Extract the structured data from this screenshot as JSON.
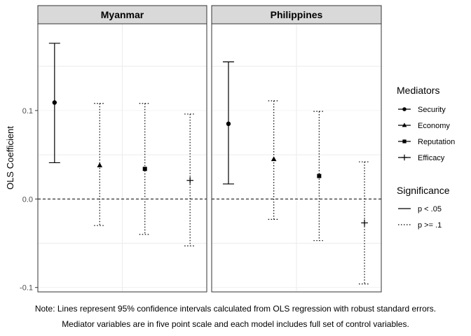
{
  "chart_data": {
    "type": "errorbar",
    "ylabel": "OLS Coefficient",
    "ylim": [
      -0.105,
      0.198
    ],
    "y_ticks": [
      {
        "value": -0.1,
        "label": "-0.1"
      },
      {
        "value": 0.0,
        "label": "0.0"
      },
      {
        "value": 0.1,
        "label": "0.1"
      }
    ],
    "reference_line": {
      "value": 0.0,
      "style": "dashed"
    },
    "grid": true,
    "legend_placement": "right",
    "facets": [
      {
        "title": "Myanmar",
        "points": [
          {
            "mediator": "Security",
            "estimate": 0.109,
            "lower": 0.041,
            "upper": 0.176,
            "significance": "p < .05"
          },
          {
            "mediator": "Economy",
            "estimate": 0.038,
            "lower": -0.03,
            "upper": 0.108,
            "significance": "p >= .1"
          },
          {
            "mediator": "Reputation",
            "estimate": 0.034,
            "lower": -0.04,
            "upper": 0.108,
            "significance": "p >= .1"
          },
          {
            "mediator": "Efficacy",
            "estimate": 0.021,
            "lower": -0.053,
            "upper": 0.096,
            "significance": "p >= .1"
          }
        ]
      },
      {
        "title": "Philippines",
        "points": [
          {
            "mediator": "Security",
            "estimate": 0.085,
            "lower": 0.017,
            "upper": 0.155,
            "significance": "p < .05"
          },
          {
            "mediator": "Economy",
            "estimate": 0.045,
            "lower": -0.023,
            "upper": 0.111,
            "significance": "p >= .1"
          },
          {
            "mediator": "Reputation",
            "estimate": 0.026,
            "lower": -0.047,
            "upper": 0.099,
            "significance": "p >= .1"
          },
          {
            "mediator": "Efficacy",
            "estimate": -0.027,
            "lower": -0.096,
            "upper": 0.042,
            "significance": "p >= .1"
          }
        ]
      }
    ],
    "legends": [
      {
        "title": "Mediators",
        "items": [
          {
            "label": "Security",
            "shape": "circle"
          },
          {
            "label": "Economy",
            "shape": "triangle"
          },
          {
            "label": "Reputation",
            "shape": "square"
          },
          {
            "label": "Efficacy",
            "shape": "plus"
          }
        ]
      },
      {
        "title": "Significance",
        "items": [
          {
            "label": "p < .05",
            "linetype": "solid"
          },
          {
            "label": "p >= .1",
            "linetype": "dotted"
          }
        ]
      }
    ],
    "colors": {
      "strip_fill": "#d9d9d9",
      "grid": "#ebebeb",
      "ink": "#000000",
      "axis_text": "#4d4d4d"
    }
  },
  "note": {
    "line1": "Note: Lines represent 95% confidence intervals calculated from OLS regression with robust standard errors.",
    "line2": "Mediator variables are in five point scale and each model includes full set of control variables."
  }
}
